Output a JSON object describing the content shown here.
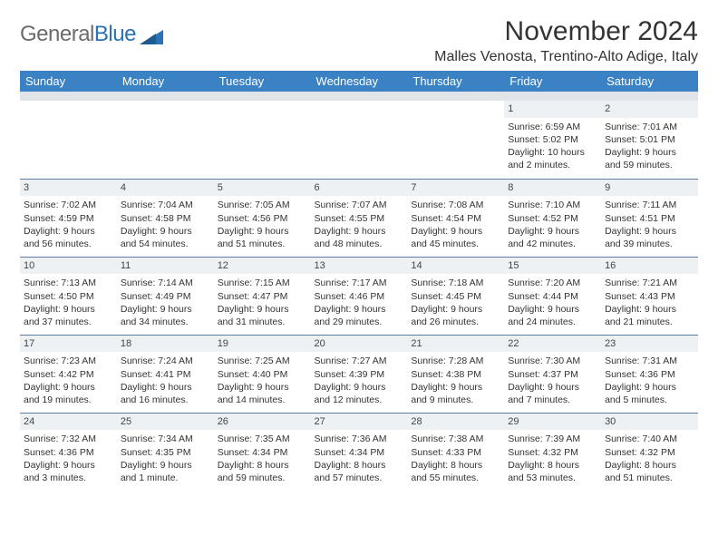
{
  "logo": {
    "text_gen": "General",
    "text_blue": "Blue",
    "triangle_color": "#2a72b5"
  },
  "header": {
    "month_title": "November 2024",
    "location": "Malles Venosta, Trentino-Alto Adige, Italy"
  },
  "colors": {
    "header_bg": "#3b82c4",
    "header_fg": "#ffffff",
    "spacer_bg": "#e0e4e8",
    "daynum_bg": "#eef1f4",
    "row_border": "#5a7fa0",
    "text": "#333333"
  },
  "weekdays": [
    "Sunday",
    "Monday",
    "Tuesday",
    "Wednesday",
    "Thursday",
    "Friday",
    "Saturday"
  ],
  "weeks": [
    [
      null,
      null,
      null,
      null,
      null,
      {
        "n": "1",
        "sr": "Sunrise: 6:59 AM",
        "ss": "Sunset: 5:02 PM",
        "d1": "Daylight: 10 hours",
        "d2": "and 2 minutes."
      },
      {
        "n": "2",
        "sr": "Sunrise: 7:01 AM",
        "ss": "Sunset: 5:01 PM",
        "d1": "Daylight: 9 hours",
        "d2": "and 59 minutes."
      }
    ],
    [
      {
        "n": "3",
        "sr": "Sunrise: 7:02 AM",
        "ss": "Sunset: 4:59 PM",
        "d1": "Daylight: 9 hours",
        "d2": "and 56 minutes."
      },
      {
        "n": "4",
        "sr": "Sunrise: 7:04 AM",
        "ss": "Sunset: 4:58 PM",
        "d1": "Daylight: 9 hours",
        "d2": "and 54 minutes."
      },
      {
        "n": "5",
        "sr": "Sunrise: 7:05 AM",
        "ss": "Sunset: 4:56 PM",
        "d1": "Daylight: 9 hours",
        "d2": "and 51 minutes."
      },
      {
        "n": "6",
        "sr": "Sunrise: 7:07 AM",
        "ss": "Sunset: 4:55 PM",
        "d1": "Daylight: 9 hours",
        "d2": "and 48 minutes."
      },
      {
        "n": "7",
        "sr": "Sunrise: 7:08 AM",
        "ss": "Sunset: 4:54 PM",
        "d1": "Daylight: 9 hours",
        "d2": "and 45 minutes."
      },
      {
        "n": "8",
        "sr": "Sunrise: 7:10 AM",
        "ss": "Sunset: 4:52 PM",
        "d1": "Daylight: 9 hours",
        "d2": "and 42 minutes."
      },
      {
        "n": "9",
        "sr": "Sunrise: 7:11 AM",
        "ss": "Sunset: 4:51 PM",
        "d1": "Daylight: 9 hours",
        "d2": "and 39 minutes."
      }
    ],
    [
      {
        "n": "10",
        "sr": "Sunrise: 7:13 AM",
        "ss": "Sunset: 4:50 PM",
        "d1": "Daylight: 9 hours",
        "d2": "and 37 minutes."
      },
      {
        "n": "11",
        "sr": "Sunrise: 7:14 AM",
        "ss": "Sunset: 4:49 PM",
        "d1": "Daylight: 9 hours",
        "d2": "and 34 minutes."
      },
      {
        "n": "12",
        "sr": "Sunrise: 7:15 AM",
        "ss": "Sunset: 4:47 PM",
        "d1": "Daylight: 9 hours",
        "d2": "and 31 minutes."
      },
      {
        "n": "13",
        "sr": "Sunrise: 7:17 AM",
        "ss": "Sunset: 4:46 PM",
        "d1": "Daylight: 9 hours",
        "d2": "and 29 minutes."
      },
      {
        "n": "14",
        "sr": "Sunrise: 7:18 AM",
        "ss": "Sunset: 4:45 PM",
        "d1": "Daylight: 9 hours",
        "d2": "and 26 minutes."
      },
      {
        "n": "15",
        "sr": "Sunrise: 7:20 AM",
        "ss": "Sunset: 4:44 PM",
        "d1": "Daylight: 9 hours",
        "d2": "and 24 minutes."
      },
      {
        "n": "16",
        "sr": "Sunrise: 7:21 AM",
        "ss": "Sunset: 4:43 PM",
        "d1": "Daylight: 9 hours",
        "d2": "and 21 minutes."
      }
    ],
    [
      {
        "n": "17",
        "sr": "Sunrise: 7:23 AM",
        "ss": "Sunset: 4:42 PM",
        "d1": "Daylight: 9 hours",
        "d2": "and 19 minutes."
      },
      {
        "n": "18",
        "sr": "Sunrise: 7:24 AM",
        "ss": "Sunset: 4:41 PM",
        "d1": "Daylight: 9 hours",
        "d2": "and 16 minutes."
      },
      {
        "n": "19",
        "sr": "Sunrise: 7:25 AM",
        "ss": "Sunset: 4:40 PM",
        "d1": "Daylight: 9 hours",
        "d2": "and 14 minutes."
      },
      {
        "n": "20",
        "sr": "Sunrise: 7:27 AM",
        "ss": "Sunset: 4:39 PM",
        "d1": "Daylight: 9 hours",
        "d2": "and 12 minutes."
      },
      {
        "n": "21",
        "sr": "Sunrise: 7:28 AM",
        "ss": "Sunset: 4:38 PM",
        "d1": "Daylight: 9 hours",
        "d2": "and 9 minutes."
      },
      {
        "n": "22",
        "sr": "Sunrise: 7:30 AM",
        "ss": "Sunset: 4:37 PM",
        "d1": "Daylight: 9 hours",
        "d2": "and 7 minutes."
      },
      {
        "n": "23",
        "sr": "Sunrise: 7:31 AM",
        "ss": "Sunset: 4:36 PM",
        "d1": "Daylight: 9 hours",
        "d2": "and 5 minutes."
      }
    ],
    [
      {
        "n": "24",
        "sr": "Sunrise: 7:32 AM",
        "ss": "Sunset: 4:36 PM",
        "d1": "Daylight: 9 hours",
        "d2": "and 3 minutes."
      },
      {
        "n": "25",
        "sr": "Sunrise: 7:34 AM",
        "ss": "Sunset: 4:35 PM",
        "d1": "Daylight: 9 hours",
        "d2": "and 1 minute."
      },
      {
        "n": "26",
        "sr": "Sunrise: 7:35 AM",
        "ss": "Sunset: 4:34 PM",
        "d1": "Daylight: 8 hours",
        "d2": "and 59 minutes."
      },
      {
        "n": "27",
        "sr": "Sunrise: 7:36 AM",
        "ss": "Sunset: 4:34 PM",
        "d1": "Daylight: 8 hours",
        "d2": "and 57 minutes."
      },
      {
        "n": "28",
        "sr": "Sunrise: 7:38 AM",
        "ss": "Sunset: 4:33 PM",
        "d1": "Daylight: 8 hours",
        "d2": "and 55 minutes."
      },
      {
        "n": "29",
        "sr": "Sunrise: 7:39 AM",
        "ss": "Sunset: 4:32 PM",
        "d1": "Daylight: 8 hours",
        "d2": "and 53 minutes."
      },
      {
        "n": "30",
        "sr": "Sunrise: 7:40 AM",
        "ss": "Sunset: 4:32 PM",
        "d1": "Daylight: 8 hours",
        "d2": "and 51 minutes."
      }
    ]
  ]
}
